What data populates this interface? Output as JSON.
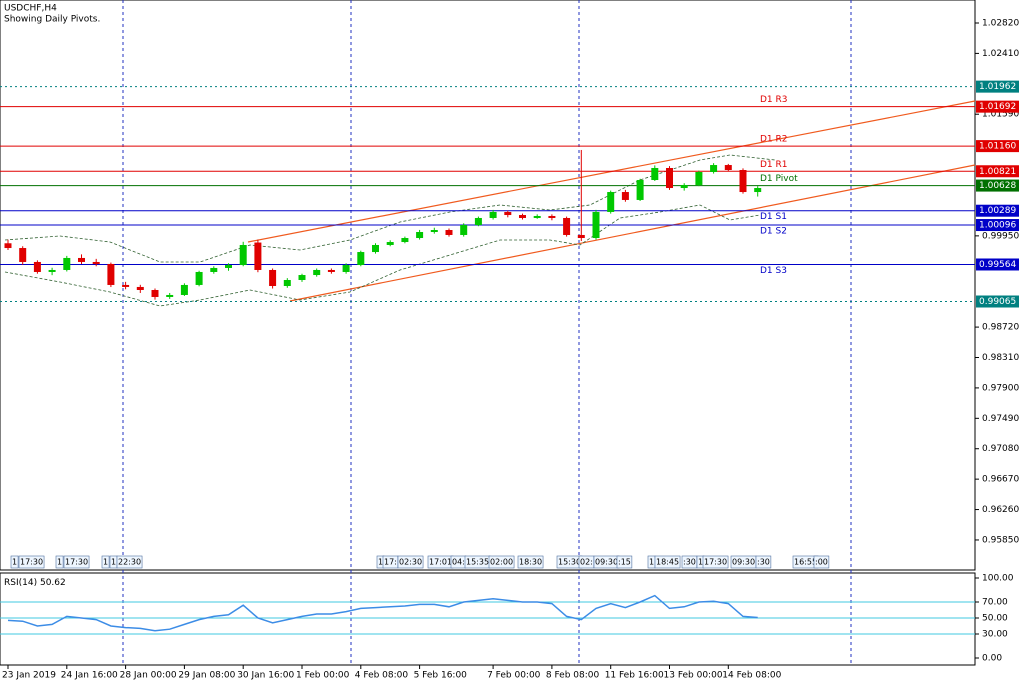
{
  "chart_data": {
    "type": "candlestick",
    "title": "USDCHF,H4",
    "subtitle": "Showing Daily Pivots.",
    "categories": [
      "23 Jan 2019",
      null,
      null,
      null,
      "24 Jan 16:00",
      null,
      null,
      null,
      "28 Jan 00:00",
      null,
      null,
      null,
      "29 Jan 08:00",
      null,
      null,
      null,
      "30 Jan 16:00",
      null,
      null,
      null,
      "1 Feb 00:00",
      null,
      null,
      null,
      "4 Feb 08:00",
      null,
      null,
      null,
      "5 Feb 16:00",
      null,
      null,
      null,
      null,
      "7 Feb 00:00",
      null,
      null,
      null,
      "8 Feb 08:00",
      null,
      null,
      null,
      "11 Feb 16:00",
      null,
      null,
      null,
      "13 Feb 00:00",
      null,
      null,
      null,
      "14 Feb 08:00",
      null,
      null
    ],
    "open": [
      0.9985,
      0.99786,
      0.99598,
      0.99463,
      0.9949,
      0.99652,
      0.99598,
      0.99571,
      0.99288,
      0.99261,
      0.9922,
      0.99126,
      0.99153,
      0.99288,
      0.99463,
      0.99517,
      0.99557,
      0.9986,
      0.9949,
      0.99274,
      0.99355,
      0.99422,
      0.9949,
      0.99463,
      0.99557,
      0.99732,
      0.99827,
      0.99867,
      0.99921,
      1.00002,
      1.00029,
      0.99962,
      1.00096,
      1.00191,
      1.00272,
      1.00231,
      1.00191,
      1.00218,
      1.00191,
      0.99962,
      0.99921,
      1.00272,
      1.00541,
      1.00434,
      1.00703,
      1.00865,
      1.00595,
      1.00636,
      1.00811,
      1.00905,
      1.00838,
      1.00541
    ],
    "high": [
      0.999,
      0.9981,
      0.9962,
      0.9952,
      0.9968,
      0.997,
      0.9964,
      0.9959,
      0.9933,
      0.9929,
      0.9924,
      0.9918,
      0.9931,
      0.9948,
      0.9954,
      0.9958,
      0.9987,
      0.999,
      0.9951,
      0.9938,
      0.9944,
      0.9951,
      0.9951,
      0.9958,
      0.9975,
      0.9985,
      0.9989,
      0.9994,
      1.0003,
      1.0006,
      1.0005,
      1.0012,
      1.0021,
      1.003,
      1.0029,
      1.0025,
      1.0024,
      1.0024,
      1.0021,
      1.01108,
      1.003,
      1.0056,
      1.0057,
      1.0072,
      1.009,
      1.0089,
      1.0066,
      1.0083,
      1.0093,
      1.0092,
      1.0086,
      1.0062
    ],
    "low": [
      0.9976,
      0.9956,
      0.9944,
      0.9942,
      0.9947,
      0.9957,
      0.9954,
      0.9926,
      0.9923,
      0.9918,
      0.9909,
      0.991,
      0.9914,
      0.9927,
      0.9944,
      0.9948,
      0.9954,
      0.9946,
      0.9924,
      0.9925,
      0.9933,
      0.994,
      0.9944,
      0.9944,
      0.9954,
      0.9971,
      0.9981,
      0.9985,
      0.999,
      0.9998,
      0.9994,
      0.9994,
      1.0008,
      1.0017,
      1.002,
      1.0017,
      1.0018,
      1.0016,
      0.9994,
      0.9988,
      0.999,
      1.0025,
      1.0041,
      1.0042,
      1.0069,
      1.0057,
      1.0056,
      1.0062,
      1.0079,
      1.0082,
      1.0052,
      1.0048
    ],
    "close": [
      0.99786,
      0.99598,
      0.99463,
      0.9949,
      0.99652,
      0.99598,
      0.99571,
      0.99288,
      0.99261,
      0.9922,
      0.99126,
      0.99153,
      0.99288,
      0.99463,
      0.99517,
      0.99557,
      0.99827,
      0.9949,
      0.99274,
      0.99355,
      0.99422,
      0.9949,
      0.99463,
      0.99557,
      0.99732,
      0.99827,
      0.99867,
      0.99921,
      1.00002,
      1.00029,
      0.99962,
      1.00096,
      1.00191,
      1.00272,
      1.00231,
      1.00191,
      1.00218,
      1.00191,
      0.99962,
      0.99921,
      1.00272,
      1.00541,
      1.00434,
      1.00703,
      1.00865,
      1.00595,
      1.00636,
      1.00811,
      1.00905,
      1.00838,
      1.00541,
      1.00595
    ],
    "up_color": "#00c800",
    "down_color": "#e00000",
    "ylim": [
      0.95445,
      1.0313
    ],
    "yticks": [
      {
        "value": 1.0282,
        "label": "1.02820"
      },
      {
        "value": 1.0241,
        "label": "1.02410"
      },
      {
        "value": 1.0159,
        "label": "1.01590"
      },
      {
        "value": 0.9995,
        "label": "0.99950"
      },
      {
        "value": 0.9872,
        "label": "0.98720"
      },
      {
        "value": 0.9831,
        "label": "0.98310"
      },
      {
        "value": 0.979,
        "label": "0.97900"
      },
      {
        "value": 0.9749,
        "label": "0.97490"
      },
      {
        "value": 0.9708,
        "label": "0.97080"
      },
      {
        "value": 0.9667,
        "label": "0.96670"
      },
      {
        "value": 0.9626,
        "label": "0.96260"
      },
      {
        "value": 0.9585,
        "label": "0.95850"
      }
    ],
    "levels": [
      {
        "price": 1.01962,
        "color": "#008080",
        "dotted": true
      },
      {
        "name": "D1 R3",
        "price": 1.01692,
        "color": "#e00000"
      },
      {
        "name": "D1 R2",
        "price": {
          "value": 1.0116,
          "label": "1.01160"
        },
        "color": "#e00000"
      },
      {
        "name": "D1 R1",
        "price": 1.00821,
        "color": "#e00000"
      },
      {
        "name": "D1 Pivot",
        "price": 1.00628,
        "color": "#007000"
      },
      {
        "name": "D1 S1",
        "price": 1.00289,
        "color": "#0000c8"
      },
      {
        "name": "D1 S2",
        "price": 1.00096,
        "color": "#0000c8"
      },
      {
        "name": "D1 S3",
        "price": 0.99564,
        "color": "#0000c8"
      },
      {
        "price": 0.99065,
        "color": "#008080",
        "dotted": true
      }
    ],
    "event_tags": [
      "1",
      "17:30",
      "1",
      "17:30",
      "1",
      "1",
      "22:30",
      "1",
      "17:",
      "02:30",
      "17:01",
      "04:",
      "15:35",
      "02:00",
      "18:30",
      "15:30",
      "02:",
      "09:30",
      ":15",
      "1",
      "18:45",
      ":30",
      "1",
      "17:30",
      "09:30",
      ":30",
      "16:55",
      ":00"
    ],
    "rsi": {
      "name": "RSI(14)",
      "color": "#3c8ce6",
      "values": [
        47,
        46,
        40,
        42,
        52,
        50,
        48,
        40,
        38,
        37,
        34,
        36,
        42,
        48,
        52,
        54,
        66,
        50,
        44,
        48,
        52,
        55,
        55,
        58,
        62,
        63,
        64,
        65,
        67,
        67,
        64,
        70,
        72,
        74,
        72,
        70,
        70,
        68,
        52,
        48,
        62,
        68,
        63,
        70,
        78,
        62,
        64,
        70,
        71,
        68,
        52,
        50.62
      ],
      "ylim": [
        -8.75,
        106.25
      ],
      "yticks": [
        {
          "value": 100,
          "label": "100.00"
        },
        {
          "value": 70,
          "label": "70.00"
        },
        {
          "value": 50,
          "label": "50.00"
        },
        {
          "value": 30,
          "label": "30.00"
        },
        {
          "value": 0,
          "label": "0.00"
        }
      ]
    }
  }
}
